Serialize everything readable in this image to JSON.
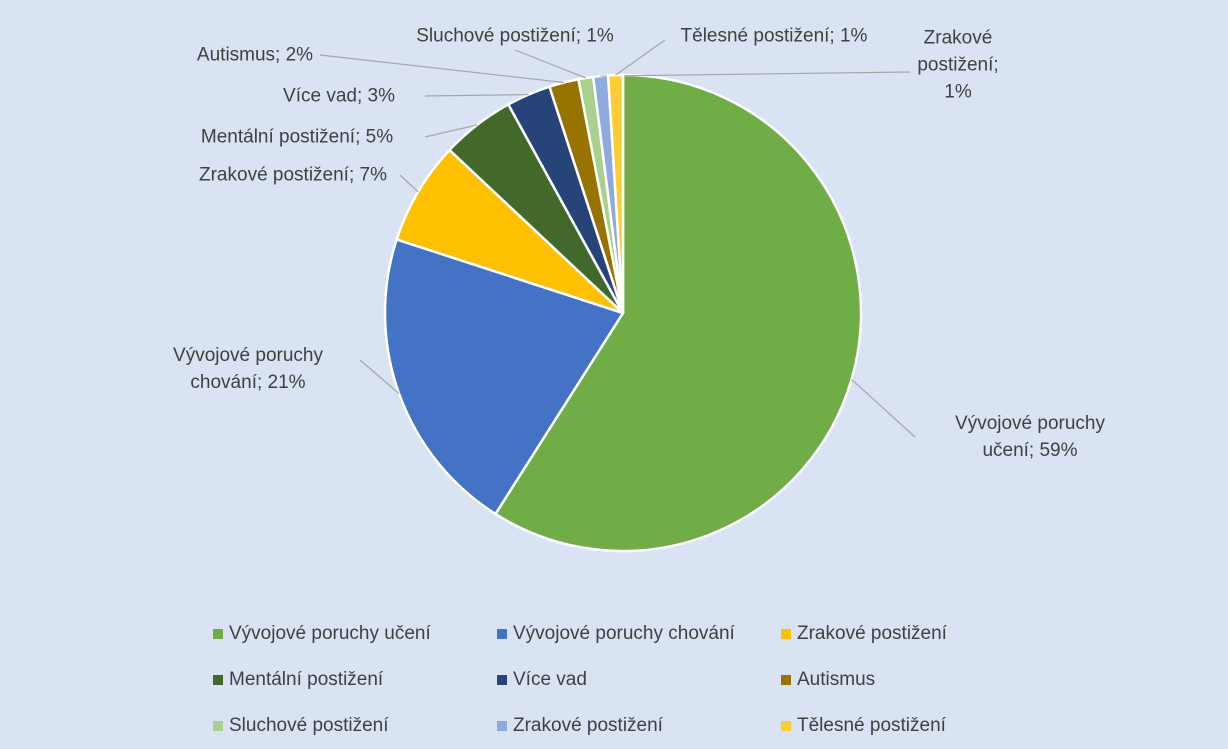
{
  "chart_data": {
    "type": "pie",
    "categories": [
      "Vývojové poruchy učení",
      "Vývojové poruchy chování",
      "Zrakové postižení",
      "Mentální postižení",
      "Více vad",
      "Autismus",
      "Sluchové postižení",
      "Zrakové postižení",
      "Tělesné postižení"
    ],
    "values": [
      59,
      21,
      7,
      5,
      3,
      2,
      1,
      1,
      1
    ],
    "value_labels": [
      "Vývojové poruchy učení; 59%",
      "Vývojové poruchy chování; 21%",
      "Zrakové postižení; 7%",
      "Mentální postižení; 5%",
      "Více vad; 3%",
      "Autismus; 2%",
      "Sluchové postižení; 1%",
      "Zrakové postižení; 1%",
      "Tělesné postižení; 1%"
    ],
    "colors": [
      "#70ad47",
      "#4472c4",
      "#ffc000",
      "#43682b",
      "#264478",
      "#997300",
      "#a9d18e",
      "#8faadc",
      "#ffcd33"
    ],
    "legend": "bottom"
  }
}
